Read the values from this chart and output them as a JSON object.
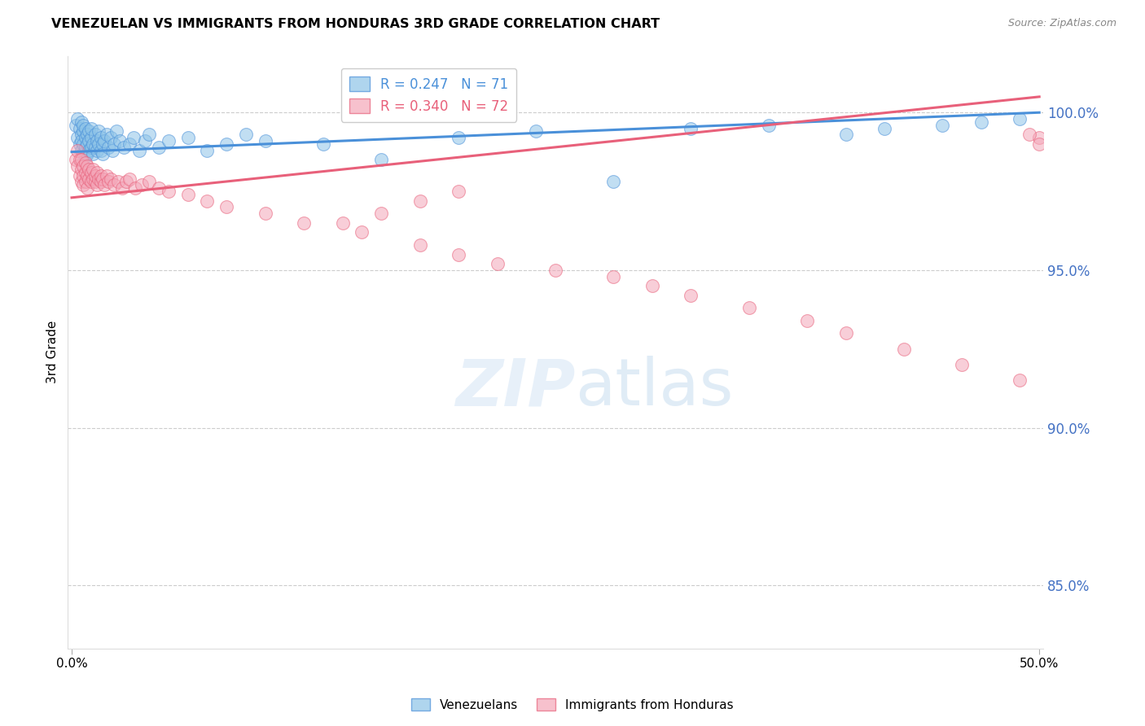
{
  "title": "VENEZUELAN VS IMMIGRANTS FROM HONDURAS 3RD GRADE CORRELATION CHART",
  "source": "Source: ZipAtlas.com",
  "ylabel": "3rd Grade",
  "yticks": [
    85.0,
    90.0,
    95.0,
    100.0
  ],
  "ytick_labels": [
    "85.0%",
    "90.0%",
    "95.0%",
    "100.0%"
  ],
  "ymin": 83.0,
  "ymax": 101.8,
  "xmin": -0.002,
  "xmax": 0.502,
  "blue_R": 0.247,
  "blue_N": 71,
  "pink_R": 0.34,
  "pink_N": 72,
  "blue_color": "#8ec4e8",
  "pink_color": "#f4a7b9",
  "blue_line_color": "#4a90d9",
  "pink_line_color": "#e8607a",
  "legend_label_blue": "Venezuelans",
  "legend_label_pink": "Immigrants from Honduras",
  "blue_line_x0": 0.0,
  "blue_line_y0": 98.75,
  "blue_line_x1": 0.5,
  "blue_line_y1": 100.0,
  "pink_line_x0": 0.0,
  "pink_line_y0": 97.3,
  "pink_line_x1": 0.5,
  "pink_line_y1": 100.5,
  "blue_points_x": [
    0.002,
    0.003,
    0.003,
    0.004,
    0.004,
    0.005,
    0.005,
    0.005,
    0.005,
    0.006,
    0.006,
    0.006,
    0.006,
    0.007,
    0.007,
    0.007,
    0.007,
    0.008,
    0.008,
    0.008,
    0.009,
    0.009,
    0.009,
    0.01,
    0.01,
    0.01,
    0.011,
    0.011,
    0.012,
    0.012,
    0.013,
    0.013,
    0.014,
    0.014,
    0.015,
    0.015,
    0.016,
    0.016,
    0.017,
    0.018,
    0.019,
    0.02,
    0.021,
    0.022,
    0.023,
    0.025,
    0.027,
    0.03,
    0.032,
    0.035,
    0.038,
    0.04,
    0.045,
    0.05,
    0.06,
    0.07,
    0.08,
    0.09,
    0.1,
    0.13,
    0.16,
    0.2,
    0.24,
    0.28,
    0.32,
    0.36,
    0.4,
    0.42,
    0.45,
    0.47,
    0.49
  ],
  "blue_points_y": [
    99.6,
    99.8,
    99.2,
    99.5,
    99.0,
    99.3,
    99.7,
    99.1,
    98.8,
    99.4,
    99.0,
    98.7,
    99.6,
    99.2,
    98.9,
    99.5,
    98.6,
    99.3,
    99.0,
    98.7,
    99.4,
    99.1,
    98.8,
    99.2,
    98.9,
    99.5,
    99.0,
    98.7,
    99.3,
    98.9,
    99.1,
    98.8,
    99.4,
    99.0,
    98.8,
    99.2,
    99.0,
    98.7,
    99.1,
    99.3,
    98.9,
    99.2,
    98.8,
    99.0,
    99.4,
    99.1,
    98.9,
    99.0,
    99.2,
    98.8,
    99.1,
    99.3,
    98.9,
    99.1,
    99.2,
    98.8,
    99.0,
    99.3,
    99.1,
    99.0,
    98.5,
    99.2,
    99.4,
    97.8,
    99.5,
    99.6,
    99.3,
    99.5,
    99.6,
    99.7,
    99.8
  ],
  "pink_points_x": [
    0.002,
    0.003,
    0.003,
    0.004,
    0.004,
    0.005,
    0.005,
    0.005,
    0.006,
    0.006,
    0.006,
    0.007,
    0.007,
    0.007,
    0.008,
    0.008,
    0.008,
    0.009,
    0.009,
    0.01,
    0.01,
    0.011,
    0.011,
    0.012,
    0.012,
    0.013,
    0.013,
    0.014,
    0.015,
    0.015,
    0.016,
    0.017,
    0.018,
    0.019,
    0.02,
    0.022,
    0.024,
    0.026,
    0.028,
    0.03,
    0.033,
    0.036,
    0.04,
    0.045,
    0.05,
    0.06,
    0.07,
    0.08,
    0.1,
    0.12,
    0.15,
    0.18,
    0.2,
    0.22,
    0.25,
    0.28,
    0.3,
    0.32,
    0.35,
    0.38,
    0.4,
    0.43,
    0.46,
    0.49,
    0.5,
    0.51,
    0.5,
    0.495,
    0.2,
    0.18,
    0.16,
    0.14
  ],
  "pink_points_y": [
    98.5,
    98.8,
    98.3,
    98.0,
    98.5,
    98.2,
    97.8,
    98.5,
    98.0,
    97.7,
    98.3,
    98.1,
    97.8,
    98.4,
    98.0,
    97.6,
    98.3,
    97.9,
    98.2,
    97.8,
    98.1,
    97.9,
    98.2,
    97.8,
    98.0,
    97.7,
    98.1,
    97.9,
    97.8,
    98.0,
    97.9,
    97.7,
    98.0,
    97.8,
    97.9,
    97.7,
    97.8,
    97.6,
    97.8,
    97.9,
    97.6,
    97.7,
    97.8,
    97.6,
    97.5,
    97.4,
    97.2,
    97.0,
    96.8,
    96.5,
    96.2,
    95.8,
    95.5,
    95.2,
    95.0,
    94.8,
    94.5,
    94.2,
    93.8,
    93.4,
    93.0,
    92.5,
    92.0,
    91.5,
    99.2,
    99.4,
    99.0,
    99.3,
    97.5,
    97.2,
    96.8,
    96.5
  ]
}
